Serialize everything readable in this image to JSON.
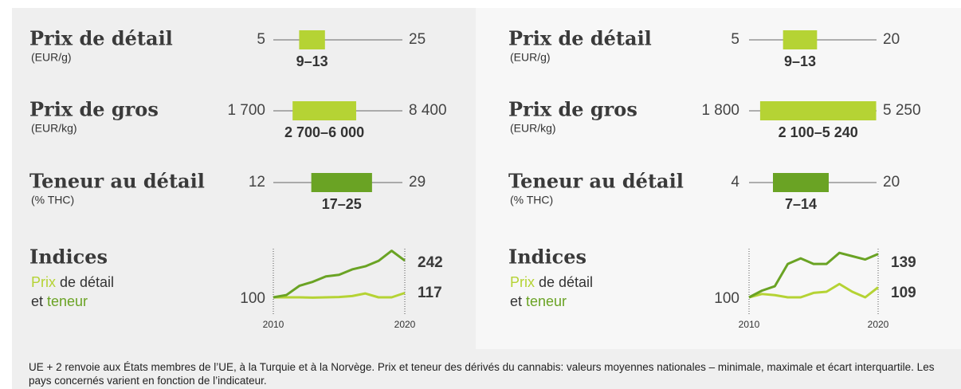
{
  "panels": [
    {
      "rows": [
        {
          "title": "Prix de détail",
          "unit": "(EUR/g)",
          "color": "#b5d334",
          "min": {
            "value": 5,
            "label": "5"
          },
          "max": {
            "value": 25,
            "label": "25"
          },
          "iqr": {
            "values": [
              9,
              13
            ],
            "label": "9–13"
          }
        },
        {
          "title": "Prix de gros",
          "unit": "(EUR/kg)",
          "color": "#b5d334",
          "min": {
            "value": 1700,
            "label": "1 700"
          },
          "max": {
            "value": 8400,
            "label": "8 400"
          },
          "iqr": {
            "values": [
              2700,
              6000
            ],
            "label": "2 700–6 000"
          }
        },
        {
          "title": "Teneur au détail",
          "unit": "(% THC)",
          "color": "#6aa324",
          "min": {
            "value": 12,
            "label": "12"
          },
          "max": {
            "value": 29,
            "label": "29"
          },
          "iqr": {
            "values": [
              17,
              25
            ],
            "label": "17–25"
          }
        }
      ],
      "indices": {
        "title": "Indices",
        "legend": [
          "Prix",
          " de détail",
          "et ",
          "teneur"
        ],
        "x": [
          2010,
          2011,
          2012,
          2013,
          2014,
          2015,
          2016,
          2017,
          2018,
          2019,
          2020
        ],
        "xticks": [
          2010,
          2020
        ],
        "ylim": [
          95,
          285
        ],
        "base": {
          "value": 100,
          "label": "100"
        },
        "series": [
          {
            "color": "#6aa324",
            "values": [
              100,
              109,
              145,
              160,
              181,
              187,
              208,
              220,
              241,
              280,
              242
            ],
            "end_label": "242"
          },
          {
            "color": "#b5d334",
            "values": [
              100,
              100,
              100,
              99,
              100,
              101,
              105,
              115,
              100,
              100,
              117
            ],
            "end_label": "117"
          }
        ]
      }
    },
    {
      "rows": [
        {
          "title": "Prix de détail",
          "unit": "(EUR/g)",
          "color": "#b5d334",
          "min": {
            "value": 5,
            "label": "5"
          },
          "max": {
            "value": 20,
            "label": "20"
          },
          "iqr": {
            "values": [
              9,
              13
            ],
            "label": "9–13"
          }
        },
        {
          "title": "Prix de gros",
          "unit": "(EUR/kg)",
          "color": "#b5d334",
          "min": {
            "value": 1800,
            "label": "1 800"
          },
          "max": {
            "value": 5250,
            "label": "5 250"
          },
          "iqr": {
            "values": [
              2100,
              5240
            ],
            "label": "2 100–5 240"
          }
        },
        {
          "title": "Teneur au détail",
          "unit": "(% THC)",
          "color": "#6aa324",
          "min": {
            "value": 4,
            "label": "4"
          },
          "max": {
            "value": 20,
            "label": "20"
          },
          "iqr": {
            "values": [
              7,
              14
            ],
            "label": "7–14"
          }
        }
      ],
      "indices": {
        "title": "Indices",
        "legend": [
          "Prix",
          " de détail",
          "et ",
          "teneur"
        ],
        "x": [
          2010,
          2011,
          2012,
          2013,
          2014,
          2015,
          2016,
          2017,
          2018,
          2019,
          2020
        ],
        "xticks": [
          2010,
          2020
        ],
        "ylim": [
          97,
          143
        ],
        "base": {
          "value": 100,
          "label": "100"
        },
        "series": [
          {
            "color": "#6aa324",
            "values": [
              100,
              106,
              110,
              130,
              135,
              130,
              130,
              140,
              137,
              134,
              139
            ],
            "end_label": "139"
          },
          {
            "color": "#b5d334",
            "values": [
              100,
              103,
              102,
              100,
              100,
              104,
              105,
              112,
              105,
              100,
              109
            ],
            "end_label": "109"
          }
        ]
      }
    }
  ],
  "footnote": "UE + 2 renvoie aux États membres de l’UE, à la Turquie et à la Norvège. Prix et teneur des dérivés du cannabis: valeurs moyennes nationales – minimale, maximale et écart interquartile. Les pays concernés varient en fonction de l’indicateur."
}
